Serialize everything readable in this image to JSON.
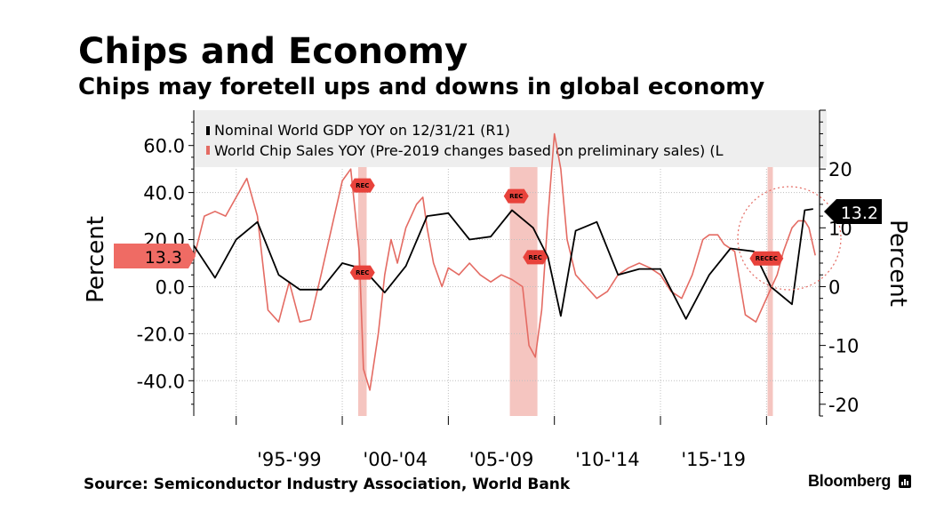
{
  "header": {
    "title": "Chips and Economy",
    "subtitle": "Chips may foretell ups and downs in global economy"
  },
  "footer": {
    "source": "Source: Semiconductor Industry Association, World Bank",
    "brand": "Bloomberg"
  },
  "chart_data": {
    "type": "line",
    "legend": {
      "placement": "top-left",
      "entries": [
        "Nominal World GDP YOY on 12/31/21 (R1)",
        "World Chip Sales YOY (Pre-2019 changes based on preliminary sales) (L"
      ]
    },
    "x_tick_labels": [
      "'95-'99",
      "'00-'04",
      "'05-'09",
      "'10-'14",
      "'15-'19"
    ],
    "x_range": [
      1993,
      2022.5
    ],
    "left_axis": {
      "label": "Percent",
      "ticks": [
        "60.0",
        "40.0",
        "20.0",
        "0.0",
        "-20.0",
        "-40.0"
      ],
      "tick_values": [
        60,
        40,
        20,
        0,
        -20,
        -40
      ],
      "range": [
        -55,
        75
      ]
    },
    "right_axis": {
      "label": "Percent",
      "ticks": [
        "20",
        "10",
        "0",
        "-10",
        "-20"
      ],
      "tick_values": [
        20,
        10,
        0,
        -10,
        -20
      ],
      "range": [
        -22,
        30
      ]
    },
    "grid": true,
    "recession_bands": [
      {
        "start": 2000.75,
        "end": 2001.15
      },
      {
        "start": 2007.9,
        "end": 2009.2
      },
      {
        "start": 2020.05,
        "end": 2020.3
      }
    ],
    "recession_markers": [
      {
        "x": 2000.95,
        "y": 43,
        "label": "REC"
      },
      {
        "x": 2000.95,
        "y": 6,
        "label": "REC"
      },
      {
        "x": 2008.2,
        "y": 38.5,
        "label": "REC"
      },
      {
        "x": 2009.1,
        "y": 12.5,
        "label": "REC"
      },
      {
        "x": 2020.0,
        "y": 12,
        "label": "RECEC"
      }
    ],
    "callouts": {
      "left_last_value": "13.3",
      "right_last_value": "13.2"
    },
    "colors": {
      "chip_sales": "#e46b63",
      "gdp": "#000000",
      "recession_band": "#f2b1ab",
      "left_callout": "#ef6b64",
      "right_callout": "#000000",
      "legend_bg": "#eeeeee"
    },
    "series": [
      {
        "name": "Nominal World GDP YOY on 12/31/21 (R1)",
        "axis": "right",
        "values": [
          [
            1993,
            7
          ],
          [
            1994,
            1.5
          ],
          [
            1995,
            8
          ],
          [
            1996,
            11
          ],
          [
            1997,
            2
          ],
          [
            1998,
            -0.5
          ],
          [
            1999,
            -0.5
          ],
          [
            2000,
            4
          ],
          [
            2001,
            3
          ],
          [
            2002,
            -1
          ],
          [
            2003,
            3.5
          ],
          [
            2004,
            12
          ],
          [
            2005,
            12.5
          ],
          [
            2006,
            8
          ],
          [
            2007,
            8.5
          ],
          [
            2008,
            13
          ],
          [
            2009,
            10
          ],
          [
            2009.7,
            5
          ],
          [
            2010.3,
            -5
          ],
          [
            2011,
            9.5
          ],
          [
            2012,
            11
          ],
          [
            2013,
            2
          ],
          [
            2014,
            3
          ],
          [
            2015,
            3
          ],
          [
            2016.2,
            -5.5
          ],
          [
            2017.3,
            2
          ],
          [
            2018.3,
            6.5
          ],
          [
            2019.4,
            6
          ],
          [
            2020.2,
            0
          ],
          [
            2021.2,
            -3
          ],
          [
            2021.8,
            13
          ],
          [
            2022.2,
            13.2
          ]
        ]
      },
      {
        "name": "World Chip Sales YOY (Pre-2019 changes based on preliminary sales) (L",
        "axis": "left",
        "values": [
          [
            1993,
            12
          ],
          [
            1993.5,
            30
          ],
          [
            1994,
            32
          ],
          [
            1994.5,
            30
          ],
          [
            1995,
            38
          ],
          [
            1995.5,
            46
          ],
          [
            1996,
            30
          ],
          [
            1996.5,
            -10
          ],
          [
            1997,
            -15
          ],
          [
            1997.5,
            2
          ],
          [
            1998,
            -15
          ],
          [
            1998.5,
            -14
          ],
          [
            1999,
            5
          ],
          [
            1999.5,
            25
          ],
          [
            2000,
            45
          ],
          [
            2000.4,
            50
          ],
          [
            2000.8,
            15
          ],
          [
            2001,
            -35
          ],
          [
            2001.3,
            -44
          ],
          [
            2001.7,
            -20
          ],
          [
            2002,
            5
          ],
          [
            2002.3,
            20
          ],
          [
            2002.6,
            10
          ],
          [
            2003,
            25
          ],
          [
            2003.5,
            35
          ],
          [
            2003.8,
            38
          ],
          [
            2004,
            25
          ],
          [
            2004.3,
            10
          ],
          [
            2004.7,
            0
          ],
          [
            2005,
            8
          ],
          [
            2005.5,
            5
          ],
          [
            2006,
            10
          ],
          [
            2006.5,
            5
          ],
          [
            2007,
            2
          ],
          [
            2007.5,
            5
          ],
          [
            2008,
            3
          ],
          [
            2008.5,
            0
          ],
          [
            2008.8,
            -25
          ],
          [
            2009.1,
            -30
          ],
          [
            2009.4,
            -10
          ],
          [
            2009.7,
            30
          ],
          [
            2010,
            65
          ],
          [
            2010.3,
            50
          ],
          [
            2010.6,
            20
          ],
          [
            2011,
            5
          ],
          [
            2011.5,
            0
          ],
          [
            2012,
            -5
          ],
          [
            2012.5,
            -2
          ],
          [
            2013,
            5
          ],
          [
            2013.5,
            8
          ],
          [
            2014,
            10
          ],
          [
            2014.5,
            8
          ],
          [
            2015,
            5
          ],
          [
            2015.5,
            -2
          ],
          [
            2016,
            -5
          ],
          [
            2016.5,
            5
          ],
          [
            2017,
            20
          ],
          [
            2017.3,
            22
          ],
          [
            2017.7,
            22
          ],
          [
            2018,
            18
          ],
          [
            2018.5,
            15
          ],
          [
            2019,
            -12
          ],
          [
            2019.5,
            -15
          ],
          [
            2020,
            -5
          ],
          [
            2020.5,
            5
          ],
          [
            2020.8,
            15
          ],
          [
            2021.2,
            25
          ],
          [
            2021.5,
            28
          ],
          [
            2021.8,
            28
          ],
          [
            2022,
            25
          ],
          [
            2022.3,
            13.3
          ]
        ]
      }
    ]
  }
}
